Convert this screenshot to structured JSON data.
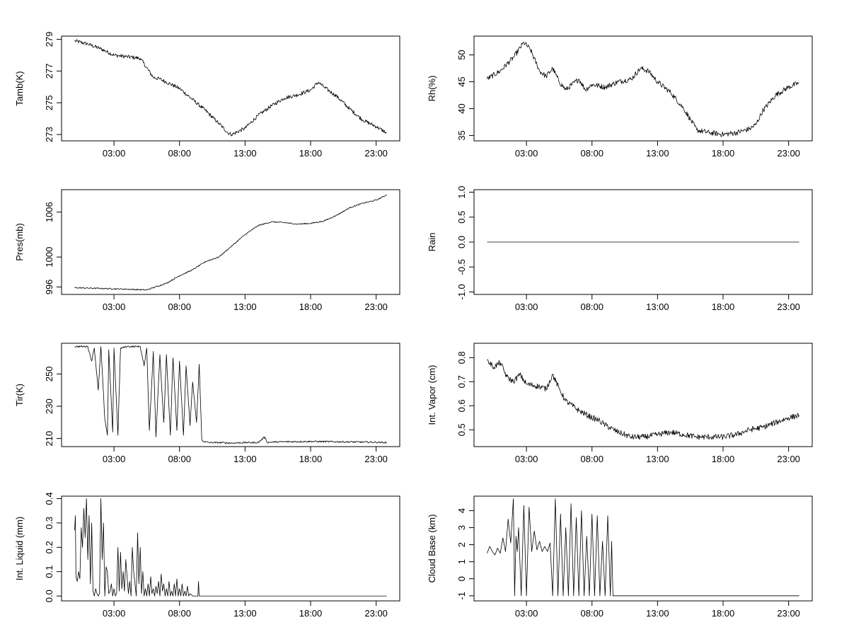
{
  "chart_data": [
    {
      "type": "line",
      "title": "",
      "ylabel": "Tamb(K)",
      "xlabel": "",
      "xlim": [
        -1.0,
        24.8
      ],
      "ylim": [
        272.6,
        279.2
      ],
      "x_ticks": [
        3,
        8,
        13,
        18,
        23
      ],
      "x_tick_labels": [
        "03:00",
        "08:00",
        "13:00",
        "18:00",
        "23:00"
      ],
      "y_ticks": [
        273,
        275,
        277,
        279
      ],
      "y_tick_labels": [
        "273",
        "275",
        "277",
        "279"
      ],
      "noise": 0.12,
      "series": [
        {
          "x": [
            0,
            1,
            2,
            3,
            4,
            5,
            6,
            6.5,
            7,
            8,
            9,
            10,
            11,
            11.7,
            12,
            13,
            14,
            15,
            16,
            17,
            18,
            18.6,
            19,
            20,
            21,
            22,
            23,
            23.8
          ],
          "y": [
            278.9,
            278.7,
            278.4,
            278.0,
            277.9,
            277.8,
            276.6,
            276.5,
            276.3,
            275.9,
            275.2,
            274.5,
            273.7,
            273.1,
            273.0,
            273.4,
            274.2,
            274.8,
            275.3,
            275.5,
            275.8,
            276.3,
            276.0,
            275.4,
            274.6,
            273.9,
            273.5,
            273.1
          ]
        }
      ]
    },
    {
      "type": "line",
      "title": "",
      "ylabel": "Rh(%)",
      "xlabel": "",
      "xlim": [
        -1.0,
        24.8
      ],
      "ylim": [
        34.0,
        53.5
      ],
      "x_ticks": [
        3,
        8,
        13,
        18,
        23
      ],
      "x_tick_labels": [
        "03:00",
        "08:00",
        "13:00",
        "18:00",
        "23:00"
      ],
      "y_ticks": [
        35,
        40,
        45,
        50
      ],
      "y_tick_labels": [
        "35",
        "40",
        "45",
        "50"
      ],
      "noise": 0.5,
      "series": [
        {
          "x": [
            0,
            1,
            2,
            2.8,
            3.3,
            4,
            4.5,
            5,
            5.5,
            6,
            7,
            7.5,
            8,
            9,
            10,
            11,
            11.7,
            12.3,
            13,
            14,
            15,
            15.5,
            16,
            17,
            18,
            19,
            20,
            20.5,
            21,
            22,
            23,
            23.8
          ],
          "y": [
            45.5,
            47.0,
            49.5,
            52.3,
            51.0,
            47.0,
            46.0,
            47.5,
            45.0,
            43.5,
            45.5,
            43.5,
            44.5,
            44.0,
            45.0,
            45.5,
            47.5,
            47.0,
            45.0,
            43.0,
            40.0,
            38.0,
            36.0,
            35.5,
            35.2,
            35.5,
            36.2,
            37.0,
            39.5,
            42.5,
            44.0,
            44.8
          ]
        }
      ]
    },
    {
      "type": "line",
      "title": "",
      "ylabel": "Pres(mb)",
      "xlabel": "",
      "xlim": [
        -1.0,
        24.8
      ],
      "ylim": [
        995.0,
        1009.0
      ],
      "x_ticks": [
        3,
        8,
        13,
        18,
        23
      ],
      "x_tick_labels": [
        "03:00",
        "08:00",
        "13:00",
        "18:00",
        "23:00"
      ],
      "y_ticks": [
        996,
        1000,
        1006
      ],
      "y_tick_labels": [
        "996",
        "1000",
        "1006"
      ],
      "noise": 0.08,
      "series": [
        {
          "x": [
            0,
            2,
            4,
            5.5,
            7,
            8,
            9,
            10,
            11,
            12,
            13,
            14,
            15,
            16,
            17,
            18,
            19,
            20,
            21,
            22,
            23,
            23.8
          ],
          "y": [
            995.9,
            995.8,
            995.7,
            995.6,
            996.5,
            997.5,
            998.3,
            999.4,
            1000.0,
            1001.5,
            1003.0,
            1004.2,
            1004.7,
            1004.6,
            1004.4,
            1004.5,
            1004.8,
            1005.6,
            1006.6,
            1007.2,
            1007.6,
            1008.3
          ]
        }
      ]
    },
    {
      "type": "line",
      "title": "",
      "ylabel": "Rain",
      "xlabel": "",
      "xlim": [
        -1.0,
        24.8
      ],
      "ylim": [
        -1.05,
        1.05
      ],
      "x_ticks": [
        3,
        8,
        13,
        18,
        23
      ],
      "x_tick_labels": [
        "03:00",
        "08:00",
        "13:00",
        "18:00",
        "23:00"
      ],
      "y_ticks": [
        -1.0,
        -0.5,
        0.0,
        0.5,
        1.0
      ],
      "y_tick_labels": [
        "-1.0",
        "-0.5",
        "0.0",
        "0.5",
        "1.0"
      ],
      "noise": 0,
      "series": [
        {
          "x": [
            0,
            23.8
          ],
          "y": [
            0,
            0
          ]
        }
      ]
    },
    {
      "type": "line",
      "title": "",
      "ylabel": "Tir(K)",
      "xlabel": "",
      "xlim": [
        -1.0,
        24.8
      ],
      "ylim": [
        205.0,
        269.0
      ],
      "x_ticks": [
        3,
        8,
        13,
        18,
        23
      ],
      "x_tick_labels": [
        "03:00",
        "08:00",
        "13:00",
        "18:00",
        "23:00"
      ],
      "y_ticks": [
        210,
        230,
        250
      ],
      "y_tick_labels": [
        "210",
        "230",
        "250"
      ],
      "noise": 0.5,
      "series": [
        {
          "x": [
            0,
            1,
            1.3,
            1.5,
            1.8,
            2.0,
            2.3,
            2.5,
            2.6,
            2.9,
            3.0,
            3.3,
            3.5,
            4,
            5,
            5.3,
            5.5,
            5.7,
            6.0,
            6.2,
            6.5,
            6.8,
            7.0,
            7.3,
            7.5,
            7.8,
            8.0,
            8.3,
            8.5,
            8.8,
            9.0,
            9.3,
            9.5,
            9.7,
            9.9,
            10.3,
            11,
            12,
            13,
            14,
            14.5,
            14.7,
            15,
            16,
            18,
            20,
            22,
            23,
            23.8
          ],
          "y": [
            267.0,
            267.0,
            258.0,
            266.0,
            240.0,
            267.0,
            222.0,
            212.0,
            265.0,
            214.0,
            266.0,
            212.0,
            266.0,
            267.0,
            267.0,
            255.0,
            266.0,
            215.0,
            264.0,
            211.0,
            262.0,
            220.0,
            262.0,
            212.0,
            260.0,
            215.0,
            258.0,
            212.0,
            255.0,
            218.0,
            245.0,
            220.0,
            256.0,
            209.0,
            208.0,
            207.5,
            207.5,
            207.2,
            207.5,
            207.5,
            211.0,
            207.5,
            207.8,
            208.0,
            208.2,
            208.0,
            207.8,
            207.7,
            207.5
          ]
        }
      ]
    },
    {
      "type": "line",
      "title": "",
      "ylabel": "Int. Vapor (cm)",
      "xlabel": "",
      "xlim": [
        -1.0,
        24.8
      ],
      "ylim": [
        0.43,
        0.86
      ],
      "x_ticks": [
        3,
        8,
        13,
        18,
        23
      ],
      "x_tick_labels": [
        "03:00",
        "08:00",
        "13:00",
        "18:00",
        "23:00"
      ],
      "y_ticks": [
        0.5,
        0.6,
        0.7,
        0.8
      ],
      "y_tick_labels": [
        "0.5",
        "0.6",
        "0.7",
        "0.8"
      ],
      "noise": 0.012,
      "series": [
        {
          "x": [
            0,
            0.5,
            1,
            1.5,
            2,
            2.5,
            3,
            4,
            4.5,
            5,
            5.5,
            6,
            7,
            8,
            8.5,
            9,
            10,
            11,
            12,
            13,
            14,
            15,
            16,
            17,
            18,
            19,
            20,
            21,
            22,
            23,
            23.8
          ],
          "y": [
            0.79,
            0.76,
            0.78,
            0.72,
            0.7,
            0.73,
            0.69,
            0.68,
            0.67,
            0.73,
            0.67,
            0.62,
            0.58,
            0.55,
            0.54,
            0.52,
            0.49,
            0.47,
            0.47,
            0.48,
            0.49,
            0.48,
            0.47,
            0.47,
            0.47,
            0.48,
            0.5,
            0.51,
            0.53,
            0.55,
            0.56
          ]
        }
      ]
    },
    {
      "type": "line",
      "title": "",
      "ylabel": "Int. Liquid (mm)",
      "xlabel": "",
      "xlim": [
        -1.0,
        24.8
      ],
      "ylim": [
        -0.02,
        0.41
      ],
      "x_ticks": [
        3,
        8,
        13,
        18,
        23
      ],
      "x_tick_labels": [
        "03:00",
        "08:00",
        "13:00",
        "18:00",
        "23:00"
      ],
      "y_ticks": [
        0.0,
        0.1,
        0.2,
        0.3,
        0.4
      ],
      "y_tick_labels": [
        "0.0",
        "0.1",
        "0.2",
        "0.3",
        "0.4"
      ],
      "noise": 0,
      "series": [
        {
          "x": [
            0.0,
            0.05,
            0.1,
            0.2,
            0.3,
            0.4,
            0.5,
            0.6,
            0.7,
            0.8,
            0.9,
            1.0,
            1.1,
            1.2,
            1.3,
            1.4,
            1.5,
            1.6,
            1.7,
            1.8,
            1.9,
            2.0,
            2.1,
            2.2,
            2.3,
            2.4,
            2.5,
            2.6,
            2.7,
            2.8,
            2.9,
            3.0,
            3.1,
            3.2,
            3.3,
            3.4,
            3.5,
            3.6,
            3.7,
            3.8,
            3.9,
            4.0,
            4.1,
            4.2,
            4.3,
            4.4,
            4.5,
            4.6,
            4.7,
            4.8,
            4.9,
            5.0,
            5.1,
            5.2,
            5.3,
            5.4,
            5.5,
            5.6,
            5.7,
            5.8,
            5.9,
            6.0,
            6.1,
            6.2,
            6.3,
            6.4,
            6.5,
            6.6,
            6.7,
            6.8,
            6.9,
            7.0,
            7.1,
            7.2,
            7.3,
            7.4,
            7.5,
            7.6,
            7.7,
            7.8,
            7.9,
            8.0,
            8.1,
            8.2,
            8.3,
            8.4,
            8.5,
            8.6,
            8.7,
            8.8,
            9.0,
            9.2,
            9.4,
            9.45,
            9.5,
            9.6,
            10,
            12,
            14,
            16,
            18,
            20,
            22,
            23.8
          ],
          "y": [
            0.27,
            0.33,
            0.08,
            0.06,
            0.1,
            0.07,
            0.28,
            0.2,
            0.36,
            0.24,
            0.4,
            0.15,
            0.33,
            0.05,
            0.3,
            0.02,
            0.0,
            0.03,
            0.01,
            0.0,
            0.01,
            0.4,
            0.15,
            0.3,
            0.0,
            0.12,
            0.1,
            0.01,
            0.02,
            0.05,
            0.0,
            0.03,
            0.0,
            0.01,
            0.2,
            0.02,
            0.18,
            0.03,
            0.1,
            0.02,
            0.15,
            0.08,
            0.01,
            0.06,
            0.0,
            0.2,
            0.1,
            0.05,
            0.0,
            0.26,
            0.05,
            0.2,
            0.01,
            0.1,
            0.0,
            0.03,
            0.0,
            0.05,
            0.0,
            0.08,
            0.01,
            0.03,
            0.0,
            0.04,
            0.01,
            0.06,
            0.0,
            0.09,
            0.02,
            0.05,
            0.0,
            0.03,
            0.0,
            0.06,
            0.0,
            0.02,
            0.0,
            0.05,
            0.0,
            0.07,
            0.0,
            0.03,
            0.0,
            0.05,
            0.0,
            0.02,
            0.0,
            0.04,
            0.0,
            0.01,
            0.0,
            0.0,
            0.0,
            0.06,
            0.0,
            0.0,
            0.0,
            0.0,
            0.0,
            0.0,
            0.0,
            0.0,
            0.0,
            0.0
          ]
        }
      ]
    },
    {
      "type": "line",
      "title": "",
      "ylabel": "Cloud Base (km)",
      "xlabel": "",
      "xlim": [
        -1.0,
        24.8
      ],
      "ylim": [
        -1.3,
        4.85
      ],
      "x_ticks": [
        3,
        8,
        13,
        18,
        23
      ],
      "x_tick_labels": [
        "03:00",
        "08:00",
        "13:00",
        "18:00",
        "23:00"
      ],
      "y_ticks": [
        -1,
        0,
        1,
        2,
        3,
        4
      ],
      "y_tick_labels": [
        "-1",
        "0",
        "1",
        "2",
        "3",
        "4"
      ],
      "noise": 0,
      "series": [
        {
          "x": [
            0.0,
            0.2,
            0.4,
            0.6,
            0.8,
            1.0,
            1.2,
            1.4,
            1.6,
            1.8,
            2.0,
            2.1,
            2.2,
            2.3,
            2.4,
            2.6,
            2.8,
            3.0,
            3.2,
            3.4,
            3.6,
            3.8,
            4.0,
            4.2,
            4.4,
            4.6,
            4.8,
            5.0,
            5.2,
            5.4,
            5.6,
            5.8,
            6.0,
            6.2,
            6.4,
            6.6,
            6.8,
            7.0,
            7.2,
            7.4,
            7.6,
            7.8,
            8.0,
            8.2,
            8.4,
            8.6,
            8.8,
            9.0,
            9.2,
            9.4,
            9.5,
            9.6,
            9.7,
            9.8,
            10.0,
            12,
            14,
            16,
            18,
            20,
            22,
            23.8
          ],
          "y": [
            1.5,
            1.9,
            1.6,
            1.4,
            1.8,
            1.5,
            2.4,
            1.6,
            3.5,
            2.1,
            4.7,
            -1.0,
            2.5,
            1.6,
            3.0,
            -1.0,
            4.3,
            -1.0,
            4.2,
            1.6,
            2.8,
            1.7,
            2.2,
            1.6,
            1.9,
            1.6,
            2.1,
            -1.0,
            4.7,
            -1.0,
            3.8,
            -1.0,
            3.0,
            -1.0,
            4.4,
            -1.0,
            3.6,
            -1.0,
            4.0,
            -1.0,
            2.5,
            -1.0,
            3.8,
            -1.0,
            3.7,
            -1.0,
            2.2,
            -1.0,
            3.7,
            -1.0,
            2.2,
            -1.0,
            -1.0,
            -1.0,
            -1.0,
            -1.0,
            -1.0,
            -1.0,
            -1.0,
            -1.0,
            -1.0,
            -1.0
          ]
        }
      ]
    }
  ]
}
